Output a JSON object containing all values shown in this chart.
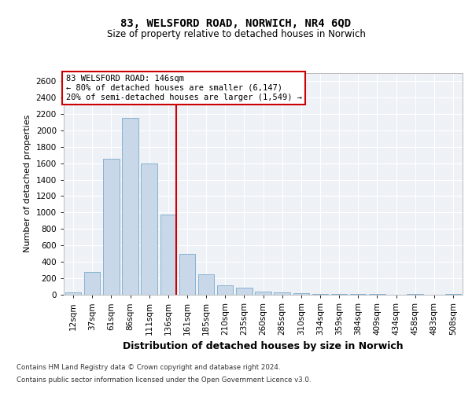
{
  "title1": "83, WELSFORD ROAD, NORWICH, NR4 6QD",
  "title2": "Size of property relative to detached houses in Norwich",
  "xlabel": "Distribution of detached houses by size in Norwich",
  "ylabel": "Number of detached properties",
  "categories": [
    "12sqm",
    "37sqm",
    "61sqm",
    "86sqm",
    "111sqm",
    "136sqm",
    "161sqm",
    "185sqm",
    "210sqm",
    "235sqm",
    "260sqm",
    "285sqm",
    "310sqm",
    "334sqm",
    "359sqm",
    "384sqm",
    "409sqm",
    "434sqm",
    "458sqm",
    "483sqm",
    "508sqm"
  ],
  "values": [
    25,
    275,
    1650,
    2150,
    1600,
    975,
    500,
    245,
    110,
    90,
    35,
    30,
    20,
    10,
    10,
    5,
    5,
    0,
    5,
    0,
    5
  ],
  "bar_color": "#c8d8e8",
  "bar_edge_color": "#7aaacc",
  "vline_color": "#cc0000",
  "vline_pos": 5.43,
  "annotation_lines": [
    "83 WELSFORD ROAD: 146sqm",
    "← 80% of detached houses are smaller (6,147)",
    "20% of semi-detached houses are larger (1,549) →"
  ],
  "annotation_box_facecolor": "#ffffff",
  "annotation_box_edgecolor": "#cc0000",
  "ylim": [
    0,
    2700
  ],
  "yticks": [
    0,
    200,
    400,
    600,
    800,
    1000,
    1200,
    1400,
    1600,
    1800,
    2000,
    2200,
    2400,
    2600
  ],
  "footer1": "Contains HM Land Registry data © Crown copyright and database right 2024.",
  "footer2": "Contains public sector information licensed under the Open Government Licence v3.0.",
  "bg_color": "#ffffff",
  "plot_bg_color": "#eef2f7"
}
